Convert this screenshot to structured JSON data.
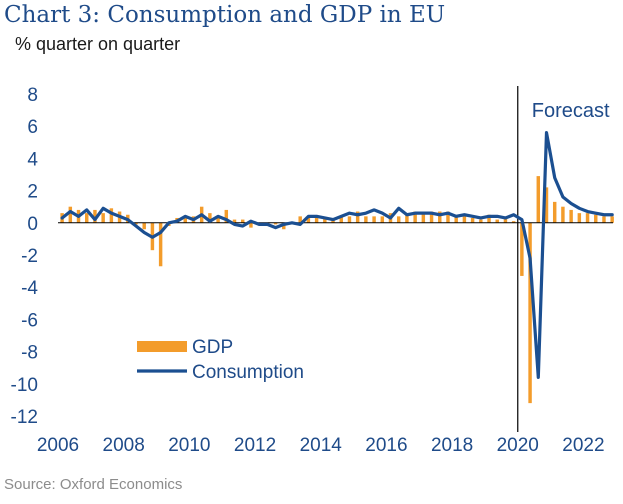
{
  "chart_data": {
    "type": "bar+line",
    "title": "Chart 3: Consumption and GDP in EU",
    "subtitle": "% quarter on quarter",
    "source": "Source: Oxford Economics",
    "xlim": [
      2006,
      2022.9
    ],
    "ylim": [
      -12,
      8
    ],
    "yticks": [
      8,
      6,
      4,
      2,
      0,
      -2,
      -4,
      -6,
      -8,
      -10,
      -12
    ],
    "xticks": [
      2006,
      2008,
      2010,
      2012,
      2014,
      2016,
      2018,
      2020,
      2022
    ],
    "forecast_start": 2020.0,
    "forecast_label": "Forecast",
    "legend": [
      {
        "name": "GDP",
        "kind": "bar",
        "color": "#f39c2b"
      },
      {
        "name": "Consumption",
        "kind": "line",
        "color": "#1b4f91"
      }
    ],
    "colors": {
      "gdp": "#f39c2b",
      "consumption": "#1b4f91",
      "text": "#1f4b89",
      "axis": "#000000"
    },
    "x": [
      2006.0,
      2006.25,
      2006.5,
      2006.75,
      2007.0,
      2007.25,
      2007.5,
      2007.75,
      2008.0,
      2008.25,
      2008.5,
      2008.75,
      2009.0,
      2009.25,
      2009.5,
      2009.75,
      2010.0,
      2010.25,
      2010.5,
      2010.75,
      2011.0,
      2011.25,
      2011.5,
      2011.75,
      2012.0,
      2012.25,
      2012.5,
      2012.75,
      2013.0,
      2013.25,
      2013.5,
      2013.75,
      2014.0,
      2014.25,
      2014.5,
      2014.75,
      2015.0,
      2015.25,
      2015.5,
      2015.75,
      2016.0,
      2016.25,
      2016.5,
      2016.75,
      2017.0,
      2017.25,
      2017.5,
      2017.75,
      2018.0,
      2018.25,
      2018.5,
      2018.75,
      2019.0,
      2019.25,
      2019.5,
      2019.75,
      2020.0,
      2020.25,
      2020.5,
      2020.75,
      2021.0,
      2021.25,
      2021.5,
      2021.75,
      2022.0,
      2022.25,
      2022.5,
      2022.75
    ],
    "series": [
      {
        "name": "GDP",
        "values": [
          0.6,
          1.0,
          0.8,
          0.6,
          0.8,
          0.6,
          0.9,
          0.7,
          0.5,
          -0.1,
          -0.4,
          -1.7,
          -2.7,
          -0.2,
          0.3,
          0.3,
          0.4,
          1.0,
          0.6,
          0.3,
          0.8,
          0.2,
          0.2,
          -0.3,
          -0.1,
          -0.2,
          -0.1,
          -0.4,
          -0.1,
          0.4,
          0.3,
          0.3,
          0.3,
          0.2,
          0.4,
          0.4,
          0.7,
          0.4,
          0.4,
          0.4,
          0.6,
          0.4,
          0.5,
          0.7,
          0.7,
          0.7,
          0.7,
          0.7,
          0.4,
          0.4,
          0.3,
          0.2,
          0.5,
          0.2,
          0.3,
          0.1,
          -3.3,
          -11.2,
          2.9,
          2.2,
          1.3,
          1.0,
          0.8,
          0.6,
          0.6,
          0.5,
          0.4,
          0.4
        ]
      },
      {
        "name": "Consumption",
        "values": [
          0.3,
          0.7,
          0.4,
          0.8,
          0.2,
          0.9,
          0.6,
          0.4,
          0.2,
          -0.2,
          -0.6,
          -0.9,
          -0.6,
          0.0,
          0.1,
          0.4,
          0.2,
          0.5,
          0.1,
          0.4,
          0.2,
          -0.1,
          -0.2,
          0.1,
          -0.1,
          -0.1,
          -0.3,
          -0.1,
          0.0,
          -0.1,
          0.4,
          0.4,
          0.3,
          0.2,
          0.4,
          0.6,
          0.5,
          0.6,
          0.8,
          0.6,
          0.3,
          0.9,
          0.5,
          0.6,
          0.6,
          0.6,
          0.5,
          0.6,
          0.4,
          0.5,
          0.4,
          0.3,
          0.4,
          0.4,
          0.3,
          0.5,
          0.2,
          -2.2,
          -9.6,
          5.6,
          2.8,
          1.6,
          1.2,
          0.9,
          0.7,
          0.6,
          0.5,
          0.5
        ]
      }
    ]
  }
}
